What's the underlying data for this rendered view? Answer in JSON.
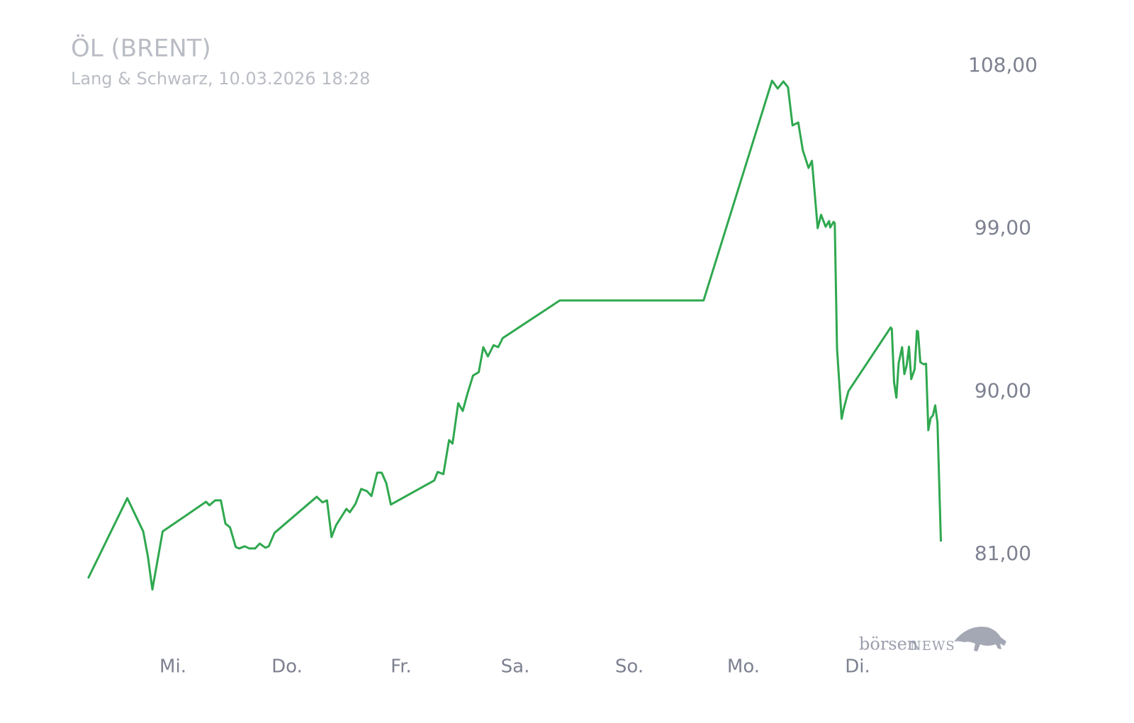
{
  "chart_data": {
    "type": "line",
    "title": "ÖL (BRENT)",
    "subtitle": "Lang & Schwarz, 10.03.2026 18:28",
    "logo": [
      "börsen",
      "NEWS"
    ],
    "xlim": [
      0,
      7.8
    ],
    "xticks": [
      {
        "value": 1,
        "label": "Mi."
      },
      {
        "value": 2,
        "label": "Do."
      },
      {
        "value": 3,
        "label": "Fr."
      },
      {
        "value": 4,
        "label": "Sa."
      },
      {
        "value": 5,
        "label": "So."
      },
      {
        "value": 6,
        "label": "Mo."
      },
      {
        "value": 7,
        "label": "Di."
      }
    ],
    "ylim": [
      77,
      109.5
    ],
    "yticks": [
      {
        "value": 108,
        "label": "108,00"
      },
      {
        "value": 99,
        "label": "99,00"
      },
      {
        "value": 90,
        "label": "90,00"
      },
      {
        "value": 81,
        "label": "81,00"
      }
    ],
    "grid": false,
    "x": [
      0.26,
      0.6,
      0.74,
      0.78,
      0.82,
      0.91,
      1.29,
      1.32,
      1.37,
      1.42,
      1.46,
      1.5,
      1.55,
      1.58,
      1.63,
      1.67,
      1.72,
      1.76,
      1.81,
      1.84,
      1.89,
      2.26,
      2.31,
      2.35,
      2.39,
      2.43,
      2.52,
      2.55,
      2.6,
      2.65,
      2.7,
      2.74,
      2.79,
      2.83,
      2.87,
      2.91,
      3.29,
      3.32,
      3.37,
      3.42,
      3.45,
      3.5,
      3.54,
      3.58,
      3.63,
      3.68,
      3.72,
      3.76,
      3.81,
      3.85,
      3.89,
      4.39,
      5.65,
      6.25,
      6.3,
      6.35,
      6.39,
      6.43,
      6.48,
      6.52,
      6.57,
      6.6,
      6.65,
      6.68,
      6.72,
      6.75,
      6.76,
      6.79,
      6.8,
      6.82,
      6.86,
      6.88,
      6.92,
      7.29,
      7.3,
      7.32,
      7.34,
      7.36,
      7.39,
      7.41,
      7.43,
      7.45,
      7.47,
      7.5,
      7.52,
      7.53,
      7.55,
      7.58,
      7.6,
      7.62,
      7.64,
      7.66,
      7.68,
      7.7,
      7.73
    ],
    "series": [
      {
        "name": "ÖL (BRENT)",
        "color": "#2fa84f",
        "values": [
          79.71,
          84.1,
          82.26,
          80.89,
          79.05,
          82.26,
          83.9,
          83.71,
          83.98,
          83.98,
          82.69,
          82.49,
          81.4,
          81.32,
          81.44,
          81.32,
          81.32,
          81.59,
          81.36,
          81.44,
          82.18,
          84.18,
          83.87,
          83.98,
          81.95,
          82.61,
          83.51,
          83.32,
          83.79,
          84.61,
          84.49,
          84.22,
          85.51,
          85.51,
          84.92,
          83.75,
          85.08,
          85.55,
          85.43,
          87.31,
          87.12,
          89.35,
          88.92,
          89.86,
          90.88,
          91.07,
          92.45,
          91.94,
          92.56,
          92.45,
          92.95,
          95.03,
          95.03,
          107.18,
          106.75,
          107.14,
          106.82,
          104.71,
          104.87,
          103.34,
          102.36,
          102.75,
          99.03,
          99.77,
          99.11,
          99.42,
          99.07,
          99.38,
          99.3,
          92.37,
          88.49,
          89.08,
          90.02,
          93.54,
          93.46,
          90.49,
          89.66,
          91.58,
          92.45,
          90.96,
          91.43,
          92.48,
          90.68,
          91.23,
          93.35,
          93.31,
          91.62,
          91.5,
          91.54,
          87.86,
          88.53,
          88.68,
          89.23,
          88.29,
          81.75
        ]
      }
    ]
  }
}
